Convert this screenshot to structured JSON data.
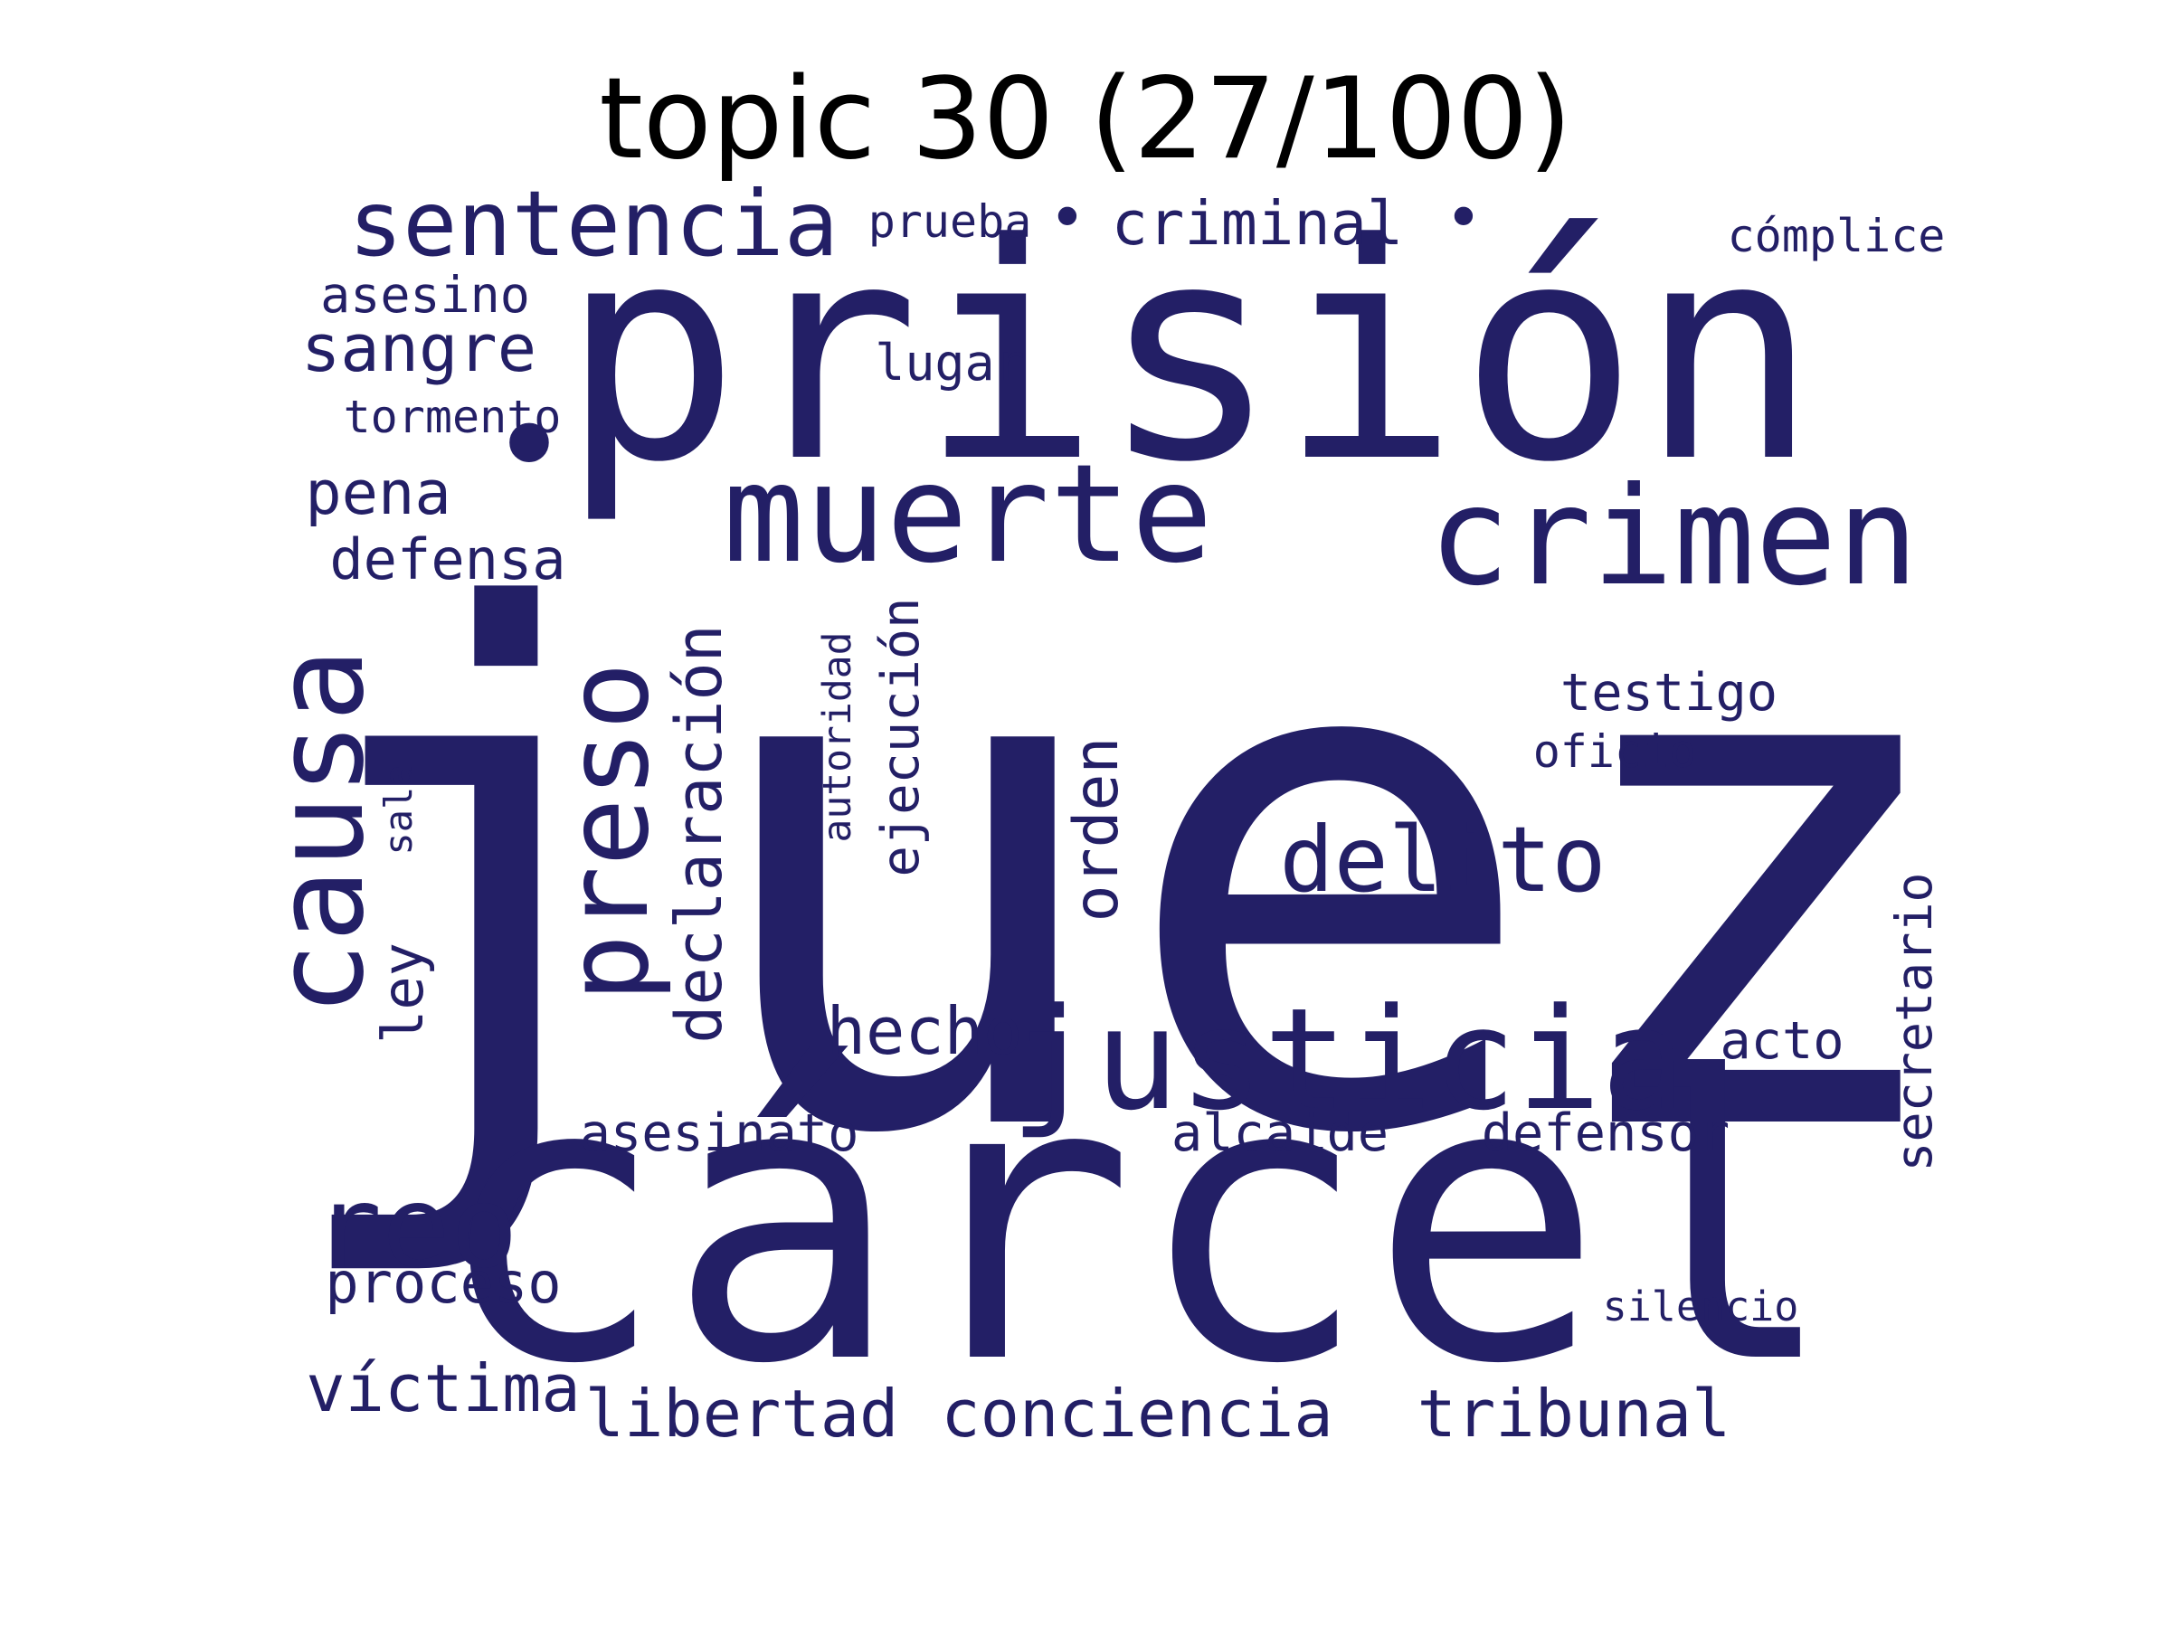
{
  "title": "topic 30 (27/100)",
  "word_color": "#231f66",
  "words": [
    "juez",
    "cárcel",
    "prisión",
    "muerte",
    "crimen",
    "justicia",
    "causa",
    "preso",
    "delito",
    "reo",
    "sentencia",
    "declaración",
    "orden",
    "conciencia",
    "tribunal",
    "víctima",
    "libertad",
    "hecho",
    "sangre",
    "ejecución",
    "testigo",
    "pena",
    "asesinato",
    "alcaide",
    "defensor",
    "defensa",
    "proceso",
    "asesino",
    "acto",
    "secretario",
    "criminal",
    "ley",
    "lugar",
    "cómplice",
    "autoridad",
    "tormento",
    "oficio",
    "silencio",
    "sala",
    "prueba",
    "•",
    "•",
    "•"
  ]
}
